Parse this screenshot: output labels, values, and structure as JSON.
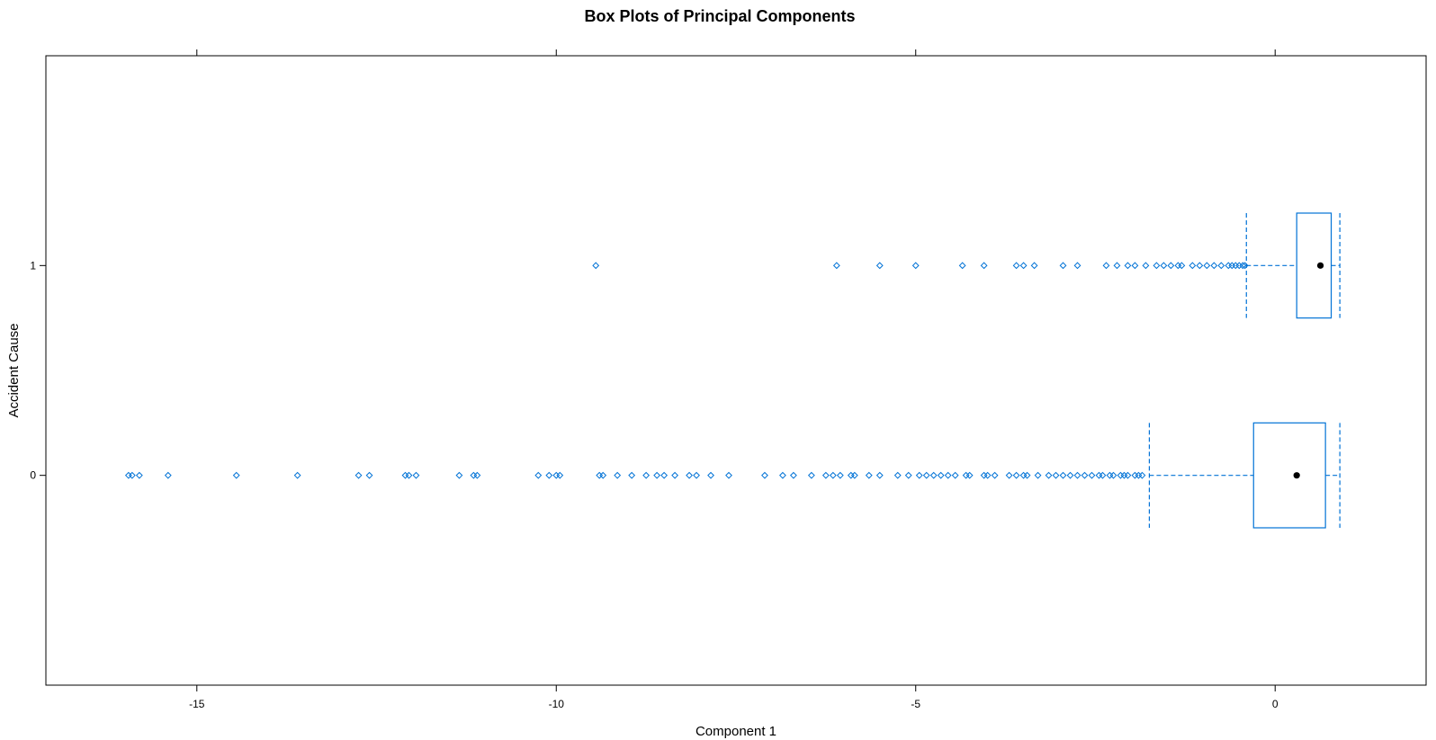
{
  "chart_data": {
    "type": "box",
    "title": "Box Plots of Principal Components",
    "xlabel": "Component 1",
    "ylabel": "Accident Cause",
    "xlim": [
      -17.1,
      2.1
    ],
    "x_ticks": [
      -15,
      -10,
      -5,
      0
    ],
    "x_tick_labels": [
      "-15",
      "-10",
      "-5",
      "0"
    ],
    "categories": [
      "0",
      "1"
    ],
    "orientation": "horizontal",
    "grid": false,
    "colors": {
      "box": "#0072d6",
      "median": "#000000",
      "frame": "#000000"
    },
    "boxes": [
      {
        "category": "0",
        "whisker_low": -1.75,
        "q1": -0.3,
        "median": 0.3,
        "q3": 0.7,
        "whisker_high": 0.9,
        "outliers": [
          -15.95,
          -15.9,
          -15.8,
          -15.4,
          -14.45,
          -13.6,
          -12.75,
          -12.6,
          -12.1,
          -12.05,
          -11.95,
          -11.35,
          -11.15,
          -11.1,
          -10.25,
          -10.1,
          -10.0,
          -9.95,
          -9.4,
          -9.35,
          -9.15,
          -8.95,
          -8.75,
          -8.6,
          -8.5,
          -8.35,
          -8.15,
          -8.05,
          -7.85,
          -7.6,
          -7.1,
          -6.85,
          -6.7,
          -6.45,
          -6.25,
          -6.15,
          -6.05,
          -5.9,
          -5.85,
          -5.65,
          -5.5,
          -5.25,
          -5.1,
          -4.95,
          -4.85,
          -4.75,
          -4.65,
          -4.55,
          -4.45,
          -4.3,
          -4.25,
          -4.05,
          -4.0,
          -3.9,
          -3.7,
          -3.6,
          -3.5,
          -3.45,
          -3.3,
          -3.15,
          -3.05,
          -2.95,
          -2.85,
          -2.75,
          -2.65,
          -2.55,
          -2.45,
          -2.4,
          -2.3,
          -2.25,
          -2.15,
          -2.1,
          -2.05,
          -1.95,
          -1.9,
          -1.85
        ]
      },
      {
        "category": "1",
        "whisker_low": -0.4,
        "q1": 0.3,
        "median": 0.63,
        "q3": 0.78,
        "whisker_high": 0.9,
        "outliers": [
          -9.45,
          -6.1,
          -5.5,
          -5.0,
          -4.35,
          -4.05,
          -3.6,
          -3.5,
          -3.35,
          -2.95,
          -2.75,
          -2.35,
          -2.2,
          -2.05,
          -1.95,
          -1.8,
          -1.65,
          -1.55,
          -1.45,
          -1.35,
          -1.3,
          -1.15,
          -1.05,
          -0.95,
          -0.85,
          -0.75,
          -0.65,
          -0.6,
          -0.55,
          -0.5,
          -0.45,
          -0.42
        ]
      }
    ]
  }
}
